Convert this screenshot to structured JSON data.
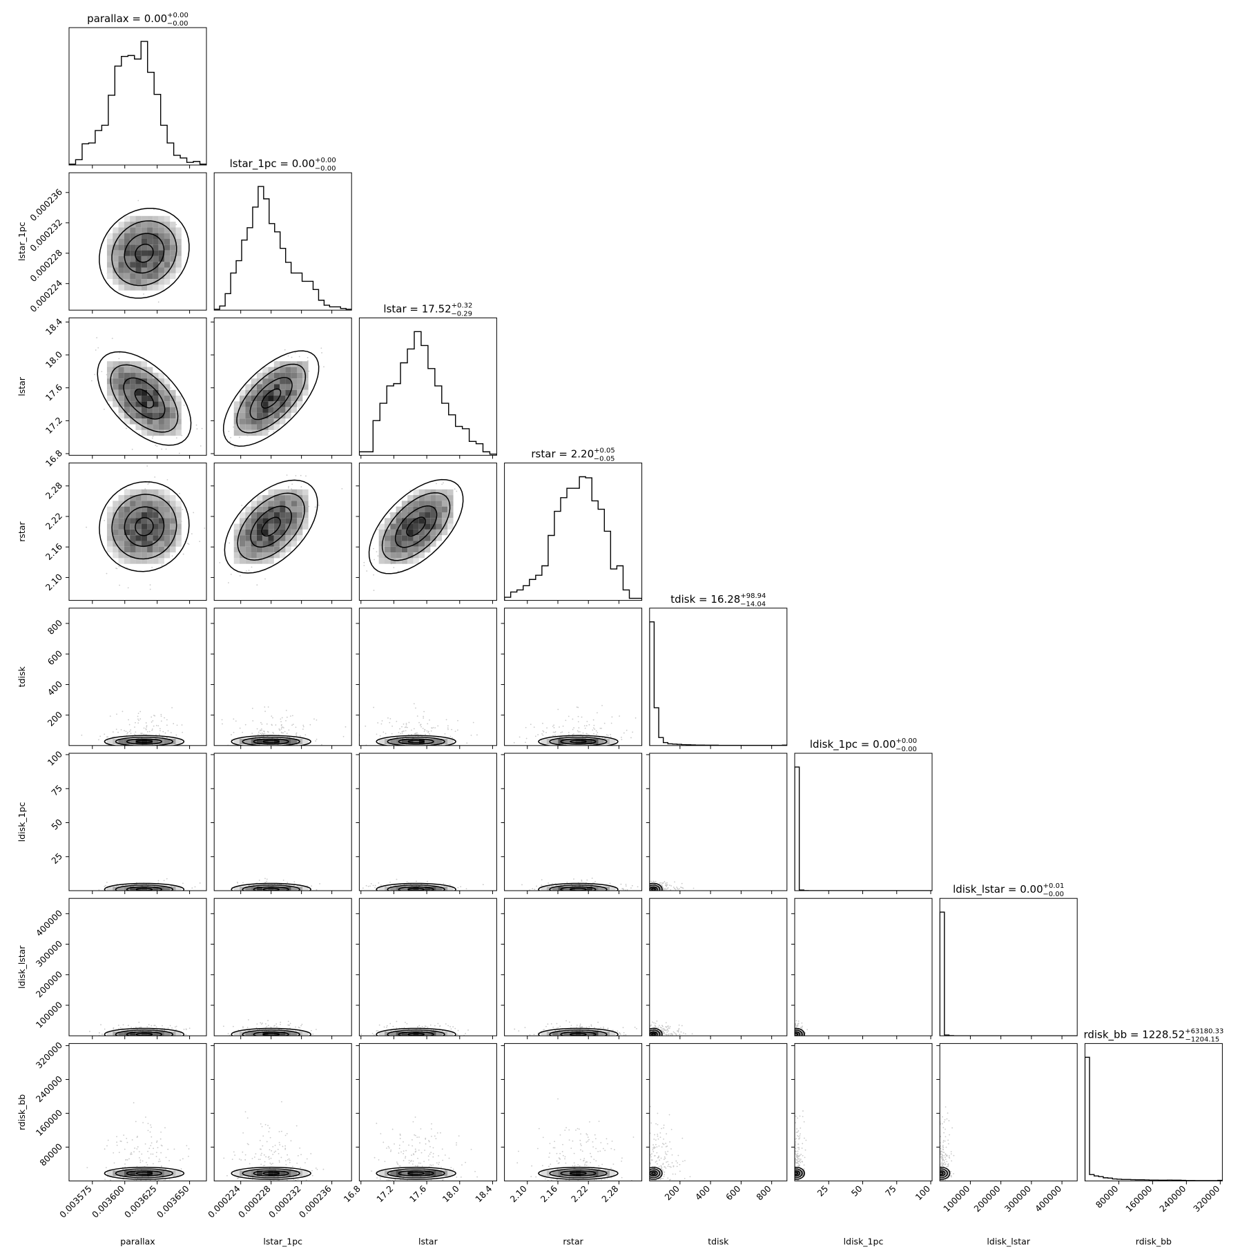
{
  "chart_data": {
    "type": "corner",
    "parameters": [
      {
        "name": "parallax",
        "label": "parallax",
        "range": [
          0.003557,
          0.003663
        ],
        "ticks": [
          0.003575,
          0.0036,
          0.003625,
          0.00365
        ],
        "tick_labels": [
          "0.003575",
          "0.003600",
          "0.003625",
          "0.003650"
        ],
        "title": {
          "text": "parallax = 0.00",
          "sup": "+0.00",
          "sub": "−0.00"
        },
        "hist": [
          1,
          6,
          24,
          25,
          39,
          45,
          79,
          112,
          123,
          124,
          120,
          140,
          105,
          80,
          45,
          25,
          11,
          8,
          3,
          4,
          1
        ]
      },
      {
        "name": "lstar_1pc",
        "label": "lstar_1pc",
        "range": [
          0.0002205,
          0.0002386
        ],
        "ticks": [
          0.000224,
          0.000228,
          0.000232,
          0.000236
        ],
        "tick_labels": [
          "0.000224",
          "0.000228",
          "0.000232",
          "0.000236"
        ],
        "title": {
          "text": "lstar_1pc = 0.00",
          "sup": "+0.00",
          "sub": "−0.00"
        },
        "hist": [
          1,
          5,
          20,
          45,
          60,
          85,
          100,
          125,
          150,
          135,
          105,
          95,
          75,
          58,
          45,
          45,
          35,
          35,
          25,
          12,
          6,
          4,
          4,
          2,
          1
        ]
      },
      {
        "name": "lstar",
        "label": "lstar",
        "range": [
          16.78,
          18.45
        ],
        "ticks": [
          16.8,
          17.2,
          17.6,
          18.0,
          18.4
        ],
        "tick_labels": [
          "16.8",
          "17.2",
          "17.6",
          "18.0",
          "18.4"
        ],
        "title": {
          "text": "lstar = 17.52",
          "sup": "+0.32",
          "sub": "−0.29"
        },
        "hist": [
          3,
          3,
          30,
          45,
          60,
          62,
          80,
          92,
          107,
          95,
          75,
          60,
          45,
          35,
          25,
          23,
          12,
          10,
          3,
          1
        ]
      },
      {
        "name": "rstar",
        "label": "rstar",
        "range": [
          2.055,
          2.325
        ],
        "ticks": [
          2.1,
          2.16,
          2.22,
          2.28
        ],
        "tick_labels": [
          "2.10",
          "2.16",
          "2.22",
          "2.28"
        ],
        "title": {
          "text": "rstar = 2.20",
          "sup": "+0.05",
          "sub": "−0.05"
        },
        "hist": [
          3,
          8,
          10,
          14,
          20,
          24,
          33,
          62,
          85,
          98,
          107,
          107,
          118,
          117,
          95,
          87,
          66,
          30,
          33,
          10,
          2,
          2
        ]
      },
      {
        "name": "tdisk",
        "label": "tdisk",
        "range": [
          1,
          900
        ],
        "ticks": [
          200,
          400,
          600,
          800
        ],
        "tick_labels": [
          "200",
          "400",
          "600",
          "800"
        ],
        "title": {
          "text": "tdisk = 16.28",
          "sup": "+98.94",
          "sub": "−14.04"
        },
        "hist": [
          850,
          260,
          55,
          20,
          12,
          10,
          8,
          6,
          5,
          4,
          3,
          3,
          2,
          2,
          2,
          1,
          1,
          1,
          1,
          1,
          1,
          1,
          1,
          1,
          1,
          1,
          1,
          1,
          1,
          3
        ]
      },
      {
        "name": "ldisk_1pc",
        "label": "ldisk_1pc",
        "range": [
          0,
          101
        ],
        "ticks": [
          25,
          50,
          75,
          100
        ],
        "tick_labels": [
          "25",
          "50",
          "75",
          "100"
        ],
        "title": {
          "text": "ldisk_1pc = 0.00",
          "sup": "+0.00",
          "sub": "−0.00"
        },
        "hist": [
          960,
          5,
          1,
          0,
          0,
          0,
          0,
          0,
          0,
          0,
          0,
          0,
          0,
          0,
          0,
          0,
          0,
          0,
          0,
          0,
          0,
          0,
          0,
          0,
          0,
          0,
          0,
          0,
          0,
          0
        ]
      },
      {
        "name": "ldisk_lstar",
        "label": "ldisk_lstar",
        "range": [
          0,
          450000
        ],
        "ticks": [
          100000,
          200000,
          300000,
          400000
        ],
        "tick_labels": [
          "100000",
          "200000",
          "300000",
          "400000"
        ],
        "title": {
          "text": "ldisk_lstar = 0.00",
          "sup": "+0.01",
          "sub": "−0.00"
        },
        "hist": [
          960,
          6,
          1,
          0,
          0,
          0,
          0,
          0,
          0,
          0,
          0,
          0,
          0,
          0,
          0,
          0,
          0,
          0,
          0,
          0,
          0,
          0,
          0,
          0,
          0,
          0,
          0,
          0,
          0,
          0
        ]
      },
      {
        "name": "rdisk_bb",
        "label": "rdisk_bb",
        "range": [
          0,
          325000
        ],
        "ticks": [
          80000,
          160000,
          240000,
          320000
        ],
        "tick_labels": [
          "80000",
          "160000",
          "240000",
          "320000"
        ],
        "title": {
          "text": "rdisk_bb = 1228.52",
          "sup": "+63180.33",
          "sub": "−1204.15"
        },
        "hist": [
          870,
          45,
          35,
          30,
          22,
          20,
          14,
          12,
          10,
          10,
          9,
          8,
          8,
          7,
          6,
          6,
          5,
          5,
          6,
          5,
          5,
          4,
          3,
          3,
          2,
          2,
          2,
          2,
          2,
          4
        ]
      }
    ],
    "means": [
      0.003615,
      0.000228,
      17.47,
      2.2,
      16,
      0.5,
      10000,
      10000
    ],
    "sds": [
      1.5e-05,
      2.5e-06,
      0.28,
      0.045,
      90,
      3,
      15000,
      60000
    ],
    "correlations": [
      [
        1,
        0.15,
        -0.65,
        0.05,
        0,
        0,
        0,
        0
      ],
      [
        0.15,
        1,
        0.8,
        0.6,
        0,
        0,
        0,
        0
      ],
      [
        -0.65,
        0.8,
        1,
        0.7,
        0,
        0,
        0,
        0
      ],
      [
        0.05,
        0.6,
        0.7,
        1,
        0,
        0,
        0,
        0
      ],
      [
        0,
        0,
        0,
        0,
        1,
        0,
        0,
        0
      ],
      [
        0,
        0,
        0,
        0,
        0,
        1,
        0,
        0
      ],
      [
        0,
        0,
        0,
        0,
        0,
        0,
        1,
        0
      ],
      [
        0,
        0,
        0,
        0,
        0,
        0,
        0,
        1
      ]
    ],
    "colors": {
      "line": "#000000",
      "points": "#c8c8c8",
      "density": "#000000",
      "axes": "#000000"
    }
  }
}
